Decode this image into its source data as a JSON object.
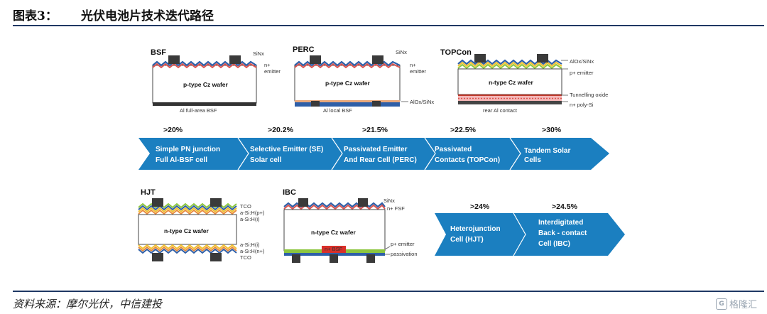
{
  "header": {
    "figure_label": "图表3：",
    "title": "光伏电池片技术迭代路径"
  },
  "source": "资料来源：摩尔光伏，中信建投",
  "watermark": {
    "icon": "G",
    "text": "格隆汇"
  },
  "cells": {
    "bsf": {
      "title": "BSF",
      "wafer": "p-type Cz wafer",
      "top_label": "SiNx",
      "emitter1": "n+",
      "emitter2": "emitter",
      "bottom": "Al full-area BSF"
    },
    "perc": {
      "title": "PERC",
      "wafer": "p-type Cz wafer",
      "top_label": "SiNx",
      "emitter1": "n+",
      "emitter2": "emitter",
      "passivation": "AlOx/SiNx",
      "bottom": "Al local BSF"
    },
    "topcon": {
      "title": "TOPCon",
      "wafer": "n-type Cz wafer",
      "top_label": "AlOx/SiNx",
      "emitter": "p+ emitter",
      "oxide": "Tunnelling oxide",
      "polysi": "n+ poly-Si",
      "bottom": "rear Al contact"
    },
    "hjt": {
      "title": "HJT",
      "wafer": "n-type Cz wafer",
      "top": [
        "TCO",
        "a-Si:H(p+)",
        "a-Si:H(i)"
      ],
      "bottom": [
        "a-Si:H(i)",
        "a-Si:H(n+)",
        "TCO"
      ]
    },
    "ibc": {
      "title": "IBC",
      "wafer": "n-type Cz wafer",
      "top_label": "SiNx",
      "fsf": "n+ FSF",
      "bsf": "n+ BSF",
      "emitter": "p+ emitter",
      "passivation": "passivation"
    }
  },
  "arrow1": {
    "efficiencies": [
      ">20%",
      ">20.2%",
      ">21.5%",
      ">22.5%",
      ">30%"
    ],
    "stages": [
      {
        "line1": "Simple PN junction",
        "line2": "Full Al-BSF cell"
      },
      {
        "line1": "Selective Emitter (SE)",
        "line2": "Solar cell"
      },
      {
        "line1": "Passivated Emitter",
        "line2": "And Rear Cell (PERC)"
      },
      {
        "line1": "Passivated",
        "line2": "Contacts (TOPCon)"
      },
      {
        "line1": "Tandem Solar",
        "line2": "Cells"
      }
    ]
  },
  "arrow2": {
    "efficiencies": [
      ">24%",
      ">24.5%"
    ],
    "stages": [
      {
        "line1": "Heterojunction",
        "line2": "Cell (HJT)"
      },
      {
        "line1": "Interdigitated",
        "line2": "Back - contact",
        "line3": "Cell (IBC)"
      }
    ]
  },
  "colors": {
    "arrow": "#1b7fc0",
    "rule": "#1f3864",
    "contact": "#3a3a3a",
    "emitter_red": "#d9534f",
    "sin_blue": "#2e5fa8",
    "green": "#8cc63f",
    "yellow": "#f2c12e"
  }
}
